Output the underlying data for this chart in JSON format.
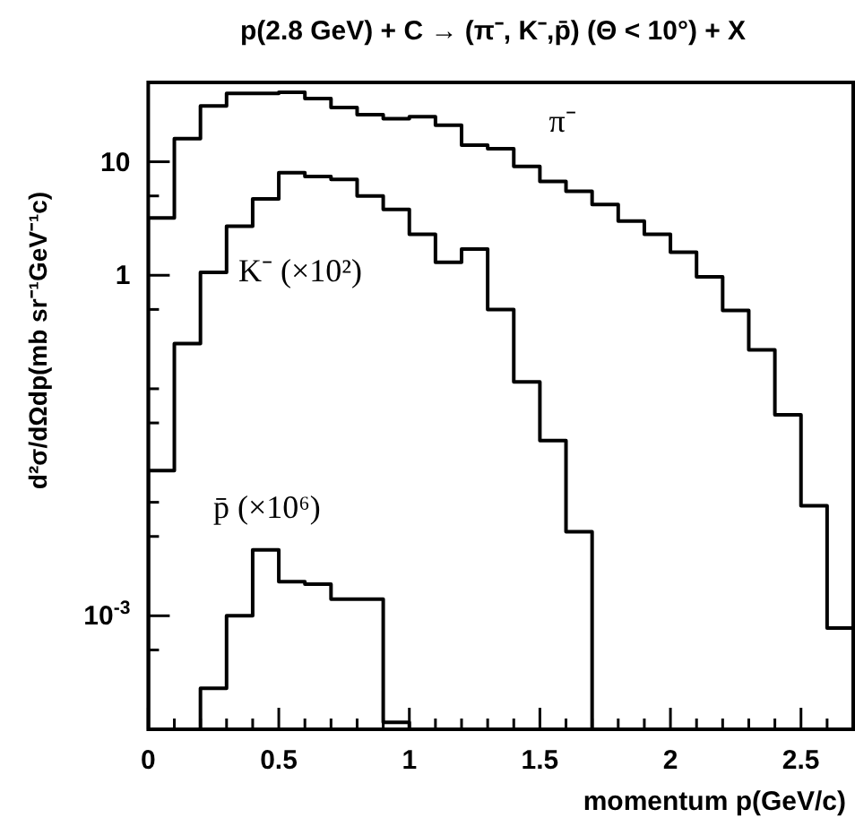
{
  "chart_data": {
    "type": "histogram",
    "title": "p(2.8 GeV) + C → (π⁻, K⁻,p̄) (Θ < 10°) + X",
    "xlabel": "momentum p(GeV/c)",
    "ylabel": "d²σ/dΩdp(mb sr⁻¹GeV⁻¹c)",
    "bins": [
      0,
      0.1,
      0.2,
      0.3,
      0.4,
      0.5,
      0.6,
      0.7,
      0.8,
      0.9,
      1.0,
      1.1,
      1.2,
      1.3,
      1.4,
      1.5,
      1.6,
      1.7,
      1.8,
      1.9,
      2.0,
      2.1,
      2.2,
      2.3,
      2.4,
      2.5,
      2.6,
      2.7
    ],
    "series": [
      {
        "name": "π⁻",
        "color": "#000000",
        "values": [
          3.2,
          16,
          31,
          40,
          40,
          41,
          36,
          30,
          26,
          24,
          25,
          21,
          14,
          13,
          9.1,
          6.7,
          5.5,
          4.2,
          3.0,
          2.3,
          1.6,
          0.97,
          0.49,
          0.22,
          0.059,
          0.0093,
          0.00078
        ]
      },
      {
        "name": "K⁻ (×10²)",
        "color": "#010101",
        "values": [
          0.019,
          0.25,
          1.06,
          2.7,
          4.7,
          8.0,
          7.4,
          7.0,
          5.0,
          3.8,
          2.3,
          1.3,
          1.7,
          0.5,
          0.115,
          0.035,
          0.0055,
          null,
          null,
          null,
          null,
          null,
          null,
          null,
          null,
          null,
          null
        ]
      },
      {
        "name": "p̄ (×10⁶)",
        "color": "#020202",
        "values": [
          null,
          null,
          0.00023,
          0.001,
          0.0038,
          0.002,
          0.0019,
          0.0014,
          0.0014,
          0.000115,
          null,
          null,
          null,
          null,
          null,
          null,
          null,
          null,
          null,
          null,
          null,
          null,
          null,
          null,
          null,
          null,
          null
        ]
      }
    ],
    "xlim": [
      0,
      2.7
    ],
    "xticks": [
      0,
      {
        "value": 0.1,
        "label": null
      },
      {
        "value": 0.2,
        "label": null
      },
      {
        "value": 0.3,
        "label": null
      },
      {
        "value": 0.4,
        "label": null
      },
      0.5,
      {
        "value": 0.6,
        "label": null
      },
      {
        "value": 0.7,
        "label": null
      },
      {
        "value": 0.8,
        "label": null
      },
      {
        "value": 0.9,
        "label": null
      },
      1,
      {
        "value": 1.1,
        "label": null
      },
      {
        "value": 1.2,
        "label": null
      },
      {
        "value": 1.3,
        "label": null
      },
      {
        "value": 1.4,
        "label": null
      },
      1.5,
      {
        "value": 1.6,
        "label": null
      },
      {
        "value": 1.7,
        "label": null
      },
      {
        "value": 1.8,
        "label": null
      },
      {
        "value": 1.9,
        "label": null
      },
      2,
      {
        "value": 2.1,
        "label": null
      },
      {
        "value": 2.2,
        "label": null
      },
      {
        "value": 2.3,
        "label": null
      },
      {
        "value": 2.4,
        "label": null
      },
      2.5,
      {
        "value": 2.6,
        "label": null
      }
    ],
    "ylim": [
      0.0001,
      50
    ],
    "yticks": [
      {
        "value": 50,
        "label": null
      },
      10,
      {
        "value": 5,
        "label": null
      },
      1,
      {
        "value": 0.5,
        "label": null
      },
      {
        "value": 0.1,
        "label": null
      },
      {
        "value": 0.05,
        "label": null
      },
      {
        "value": 0.01,
        "label": null
      },
      {
        "value": 0.005,
        "label": null
      },
      {
        "value": 0.001,
        "label": "10$^{-3}$"
      },
      {
        "value": 0.0005,
        "label": null
      }
    ],
    "log": "y",
    "grid": false
  }
}
